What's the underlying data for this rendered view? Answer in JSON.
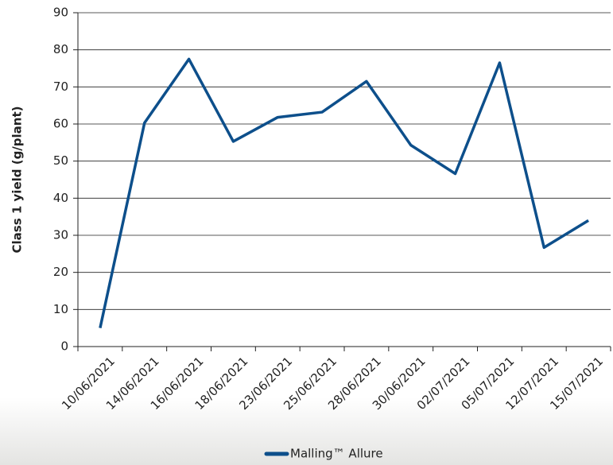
{
  "chart_data": {
    "type": "line",
    "y_label": "Class 1 yield (g/plant)",
    "categories": [
      "10/06/2021",
      "14/06/2021",
      "16/06/2021",
      "18/06/2021",
      "23/06/2021",
      "25/06/2021",
      "28/06/2021",
      "30/06/2021",
      "02/07/2021",
      "05/07/2021",
      "12/07/2021",
      "15/07/2021"
    ],
    "series": [
      {
        "name": "Malling™ Allure",
        "color": "#0d4f8b",
        "values": [
          5,
          60.3,
          77.5,
          55.3,
          61.8,
          63.2,
          71.5,
          54.3,
          46.6,
          76.5,
          26.7,
          34
        ]
      }
    ],
    "ylim": [
      0,
      90
    ],
    "yticks": [
      0,
      10,
      20,
      30,
      40,
      50,
      60,
      70,
      80,
      90
    ],
    "grid": true,
    "legend": "bottom"
  }
}
